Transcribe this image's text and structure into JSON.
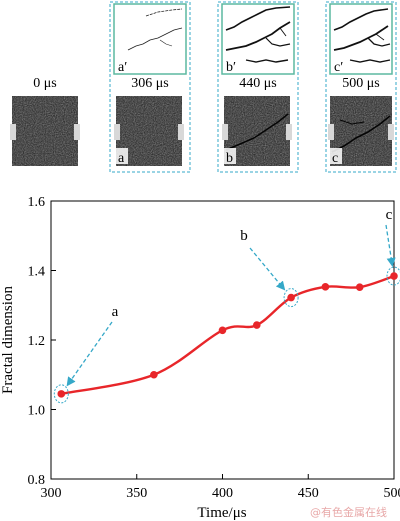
{
  "panels": [
    {
      "time_label": "0 μs",
      "letter": "",
      "crack_letter": "",
      "has_crack": false
    },
    {
      "time_label": "306 μs",
      "letter": "a",
      "crack_letter": "a′",
      "has_crack": true
    },
    {
      "time_label": "440 μs",
      "letter": "b",
      "crack_letter": "b′",
      "has_crack": true
    },
    {
      "time_label": "500 μs",
      "letter": "c",
      "crack_letter": "c′",
      "has_crack": true
    }
  ],
  "chart_data": {
    "type": "line",
    "xlabel": "Time/μs",
    "ylabel": "Fractal dimension",
    "xlim": [
      300,
      500
    ],
    "ylim": [
      0.8,
      1.6
    ],
    "xticks": [
      300,
      350,
      400,
      450,
      500
    ],
    "yticks": [
      0.8,
      1.0,
      1.2,
      1.4,
      1.6
    ],
    "x": [
      306,
      360,
      400,
      420,
      440,
      460,
      480,
      500
    ],
    "y": [
      1.045,
      1.1,
      1.228,
      1.243,
      1.322,
      1.353,
      1.352,
      1.384
    ],
    "line_color": "#e8262a",
    "annotations": [
      {
        "label": "a",
        "x": 306,
        "y": 1.045
      },
      {
        "label": "b",
        "x": 440,
        "y": 1.322
      },
      {
        "label": "c",
        "x": 500,
        "y": 1.384
      }
    ],
    "grid": false
  },
  "colors": {
    "frame_dashed": "#35a8c8",
    "crack_box_border": "#5cb8a0",
    "arrow": "#35a8c8",
    "line": "#e8262a"
  },
  "watermark": "@有色金属在线"
}
